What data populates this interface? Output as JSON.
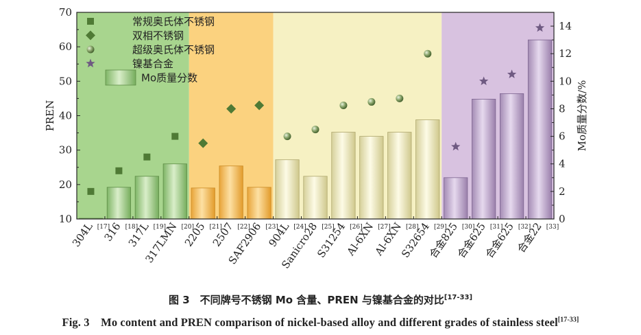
{
  "chart_data": {
    "type": "bar",
    "categories": [
      "304L",
      "316",
      "317L",
      "317LMN",
      "2205",
      "2507",
      "SAF2906",
      "904L",
      "Sanicro28",
      "S31254",
      "Al-6XN",
      "Al-6XN",
      "S32654",
      "合金825",
      "合金625",
      "合金625",
      "合金22"
    ],
    "refs": [
      "[17]",
      "[18]",
      "[19]",
      "[20]",
      "[21]",
      "[22]",
      "[23]",
      "[24]",
      "[25]",
      "[26]",
      "[27]",
      "[28]",
      "[29]",
      "[30]",
      "[31]",
      "[32]",
      "[33]"
    ],
    "groups": [
      {
        "name": "常规奥氏体不锈钢",
        "marker": "square",
        "bg": "#a8d58e",
        "start": 0,
        "end": 3
      },
      {
        "name": "双相不锈钢",
        "marker": "diamond",
        "bg": "#fbd27f",
        "start": 4,
        "end": 6
      },
      {
        "name": "超级奥氏体不锈钢",
        "marker": "sphere",
        "bg": "#f6f1c3",
        "start": 7,
        "end": 12
      },
      {
        "name": "镍基合金",
        "marker": "star",
        "bg": "#d8c2e0",
        "start": 13,
        "end": 16
      }
    ],
    "series": [
      {
        "name": "Mo质量分数",
        "axis": "right",
        "kind": "bar",
        "values": [
          0.05,
          2.3,
          3.1,
          4.0,
          2.25,
          3.85,
          2.3,
          4.3,
          3.1,
          6.3,
          6.0,
          6.3,
          7.2,
          3.0,
          8.7,
          9.1,
          13.0
        ]
      },
      {
        "name": "PREN",
        "axis": "left",
        "kind": "marker",
        "values": [
          18,
          24,
          28,
          34,
          32,
          42,
          43,
          34,
          36,
          43,
          44,
          45,
          58,
          31,
          50,
          52,
          65.5
        ]
      }
    ],
    "ylabel_left": "PREN",
    "ylim_left": [
      10,
      70
    ],
    "yticks_left": [
      10,
      20,
      30,
      40,
      50,
      60,
      70
    ],
    "ylabel_right": "Mo质量分数/%",
    "ylim_right": [
      0,
      15
    ],
    "yticks_right": [
      0,
      2,
      4,
      6,
      8,
      10,
      12,
      14
    ],
    "legend_position": "top-left"
  },
  "caption": {
    "cn": "图 3　不同牌号不锈钢 Mo 含量、PREN 与镍基合金的对比",
    "cn_ref": "[17-33]",
    "en": "Fig. 3　Mo content and PREN comparison of nickel-based alloy and different grades of stainless steel",
    "en_ref": "[17-33]"
  }
}
